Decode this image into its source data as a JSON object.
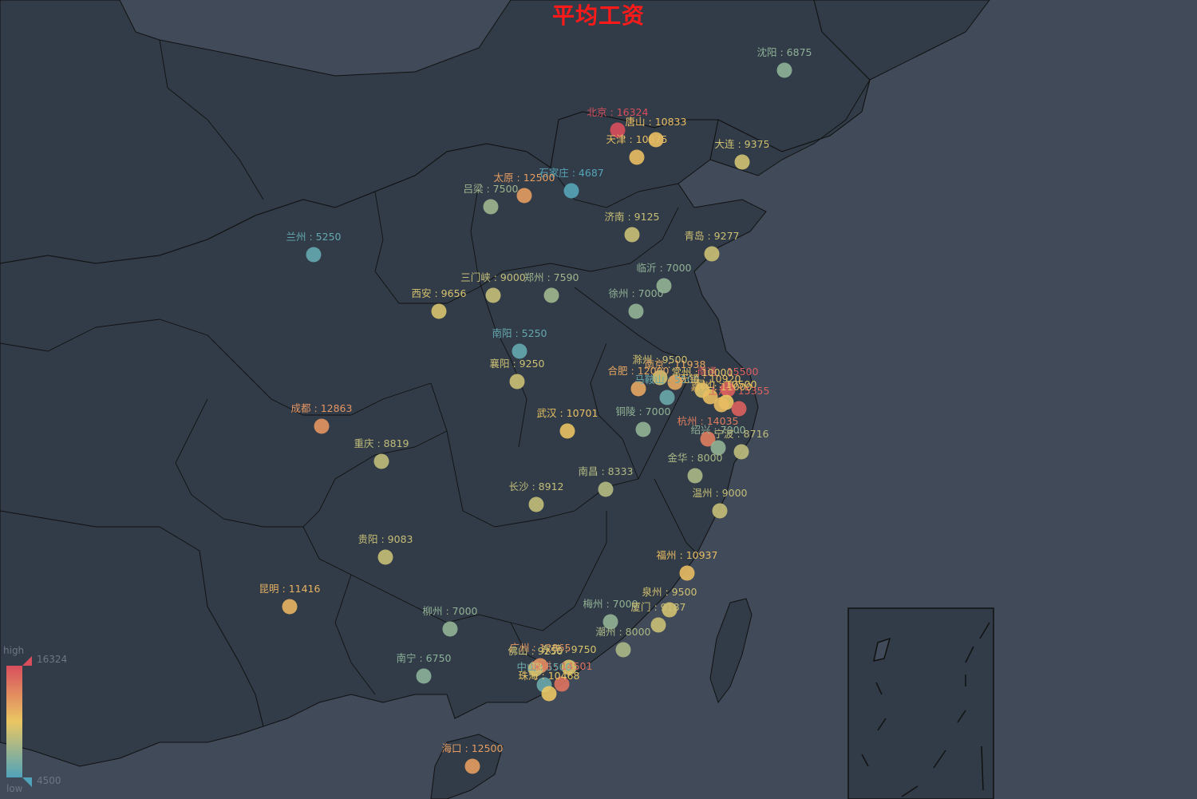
{
  "title": "平均工资",
  "visual_map": {
    "high_label": "high",
    "low_label": "low",
    "max": 16324,
    "min": 4500,
    "max_text": "16324",
    "min_text": "4500",
    "colors": [
      "#50a3ba",
      "#eac763",
      "#d94e5d"
    ]
  },
  "colors": {
    "background": "#404a59",
    "land": "#323c48",
    "border": "#111111",
    "title": "#ff1a1a"
  },
  "cities": [
    {
      "name": "北京",
      "value": 16324,
      "label": "北京 : 16324"
    },
    {
      "name": "唐山",
      "value": 10833,
      "label": "唐山 : 10833"
    },
    {
      "name": "天津",
      "value": 10875,
      "label": "天津 : 10875"
    },
    {
      "name": "沈阳",
      "value": 6875,
      "label": "沈阳 : 6875"
    },
    {
      "name": "大连",
      "value": 9375,
      "label": "大连 : 9375"
    },
    {
      "name": "石家庄",
      "value": 4687,
      "label": "石家庄 : 4687"
    },
    {
      "name": "太原",
      "value": 12500,
      "label": "太原 : 12500"
    },
    {
      "name": "吕梁",
      "value": 7500,
      "label": "吕梁 : 7500"
    },
    {
      "name": "济南",
      "value": 9125,
      "label": "济南 : 9125"
    },
    {
      "name": "青岛",
      "value": 9277,
      "label": "青岛 : 9277"
    },
    {
      "name": "兰州",
      "value": 5250,
      "label": "兰州 : 5250"
    },
    {
      "name": "临沂",
      "value": 7000,
      "label": "临沂 : 7000"
    },
    {
      "name": "三门峡",
      "value": 9000,
      "label": "三门峡 : 9000"
    },
    {
      "name": "郑州",
      "value": 7590,
      "label": "郑州 : 7590"
    },
    {
      "name": "西安",
      "value": 9656,
      "label": "西安 : 9656"
    },
    {
      "name": "徐州",
      "value": 7000,
      "label": "徐州 : 7000"
    },
    {
      "name": "南阳",
      "value": 5250,
      "label": "南阳 : 5250"
    },
    {
      "name": "襄阳",
      "value": 9250,
      "label": "襄阳 : 9250"
    },
    {
      "name": "滁州",
      "value": 9500,
      "label": "滁州 : 9500"
    },
    {
      "name": "合肥",
      "value": 12000,
      "label": "合肥 : 12000"
    },
    {
      "name": "南京",
      "value": 11938,
      "label": "南京 : 11938"
    },
    {
      "name": "南通",
      "value": 15500,
      "label": "南通 : 15500"
    },
    {
      "name": "常州",
      "value": 10000,
      "label": "常州 : 10000"
    },
    {
      "name": "马鞍山",
      "value": 5500,
      "label": "马鞍山 : 5500"
    },
    {
      "name": "无锡",
      "value": 10920,
      "label": "无锡 : 10920"
    },
    {
      "name": "昆山",
      "value": 10500,
      "label": "昆山 : 10500"
    },
    {
      "name": "上海",
      "value": 15355,
      "label": "上海 : 15355"
    },
    {
      "name": "嘉兴",
      "value": 11000,
      "label": "嘉兴 : 11000"
    },
    {
      "name": "成都",
      "value": 12863,
      "label": "成都 : 12863"
    },
    {
      "name": "武汉",
      "value": 10701,
      "label": "武汉 : 10701"
    },
    {
      "name": "铜陵",
      "value": 7000,
      "label": "铜陵 : 7000"
    },
    {
      "name": "杭州",
      "value": 14035,
      "label": "杭州 : 14035"
    },
    {
      "name": "绍兴",
      "value": 7000,
      "label": "绍兴 : 7000"
    },
    {
      "name": "宁波",
      "value": 8716,
      "label": "宁波 : 8716"
    },
    {
      "name": "重庆",
      "value": 8819,
      "label": "重庆 : 8819"
    },
    {
      "name": "金华",
      "value": 8000,
      "label": "金华 : 8000"
    },
    {
      "name": "南昌",
      "value": 8333,
      "label": "南昌 : 8333"
    },
    {
      "name": "长沙",
      "value": 8912,
      "label": "长沙 : 8912"
    },
    {
      "name": "温州",
      "value": 9000,
      "label": "温州 : 9000"
    },
    {
      "name": "贵阳",
      "value": 9083,
      "label": "贵阳 : 9083"
    },
    {
      "name": "福州",
      "value": 10937,
      "label": "福州 : 10937"
    },
    {
      "name": "昆明",
      "value": 11416,
      "label": "昆明 : 11416"
    },
    {
      "name": "泉州",
      "value": 9500,
      "label": "泉州 : 9500"
    },
    {
      "name": "梅州",
      "value": 7000,
      "label": "梅州 : 7000"
    },
    {
      "name": "厦门",
      "value": 9187,
      "label": "厦门 : 9187"
    },
    {
      "name": "柳州",
      "value": 7000,
      "label": "柳州 : 7000"
    },
    {
      "name": "潮州",
      "value": 8000,
      "label": "潮州 : 8000"
    },
    {
      "name": "南宁",
      "value": 6750,
      "label": "南宁 : 6750"
    },
    {
      "name": "广州",
      "value": 12865,
      "label": "广州 : 12865"
    },
    {
      "name": "佛山",
      "value": 9250,
      "label": "佛山 : 9250"
    },
    {
      "name": "东莞",
      "value": 9750,
      "label": "东莞 : 9750"
    },
    {
      "name": "中山",
      "value": 5500,
      "label": "中山 : 5500"
    },
    {
      "name": "深圳",
      "value": 14501,
      "label": "深圳 : 14501"
    },
    {
      "name": "珠海",
      "value": 10468,
      "label": "珠海 : 10468"
    },
    {
      "name": "海口",
      "value": 12500,
      "label": "海口 : 12500"
    }
  ]
}
